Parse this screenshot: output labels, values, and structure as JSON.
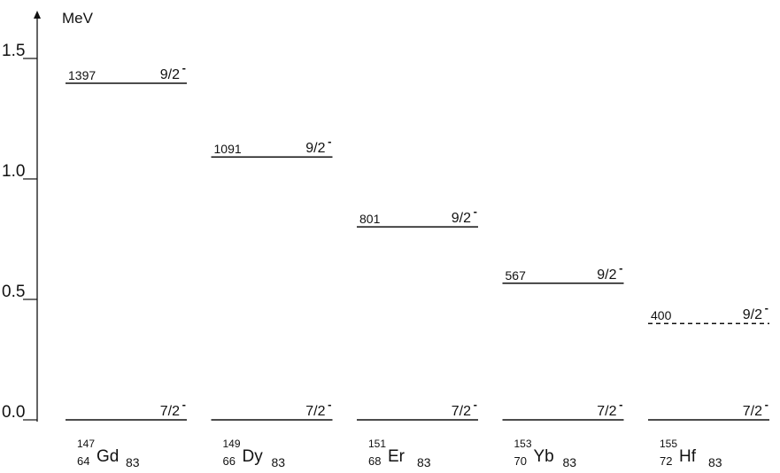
{
  "chart_data": {
    "type": "level_scheme",
    "ylabel": "MeV",
    "ylim": [
      0.0,
      1.5
    ],
    "yticks": [
      {
        "value": 0.0,
        "label": "0.0"
      },
      {
        "value": 0.5,
        "label": "0.5"
      },
      {
        "value": 1.0,
        "label": "1.0"
      },
      {
        "value": 1.5,
        "label": "1.5"
      }
    ],
    "nuclei": [
      {
        "mass": "147",
        "z": "64",
        "symbol": "Gd",
        "n": "83",
        "levels": [
          {
            "energy_kev": 0,
            "label": "",
            "spin": "7/2",
            "parity": "-",
            "style": "solid"
          },
          {
            "energy_kev": 1397,
            "label": "1397",
            "spin": "9/2",
            "parity": "-",
            "style": "solid"
          }
        ]
      },
      {
        "mass": "149",
        "z": "66",
        "symbol": "Dy",
        "n": "83",
        "levels": [
          {
            "energy_kev": 0,
            "label": "",
            "spin": "7/2",
            "parity": "-",
            "style": "solid"
          },
          {
            "energy_kev": 1091,
            "label": "1091",
            "spin": "9/2",
            "parity": "-",
            "style": "solid"
          }
        ]
      },
      {
        "mass": "151",
        "z": "68",
        "symbol": "Er",
        "n": "83",
        "levels": [
          {
            "energy_kev": 0,
            "label": "",
            "spin": "7/2",
            "parity": "-",
            "style": "solid"
          },
          {
            "energy_kev": 801,
            "label": "801",
            "spin": "9/2",
            "parity": "-",
            "style": "solid"
          }
        ]
      },
      {
        "mass": "153",
        "z": "70",
        "symbol": "Yb",
        "n": "83",
        "levels": [
          {
            "energy_kev": 0,
            "label": "",
            "spin": "7/2",
            "parity": "-",
            "style": "solid"
          },
          {
            "energy_kev": 567,
            "label": "567",
            "spin": "9/2",
            "parity": "-",
            "style": "solid"
          }
        ]
      },
      {
        "mass": "155",
        "z": "72",
        "symbol": "Hf",
        "n": "83",
        "levels": [
          {
            "energy_kev": 0,
            "label": "",
            "spin": "7/2",
            "parity": "-",
            "style": "solid"
          },
          {
            "energy_kev": 400,
            "label": "400",
            "spin": "9/2",
            "parity": "-",
            "style": "dashed"
          }
        ]
      }
    ]
  }
}
